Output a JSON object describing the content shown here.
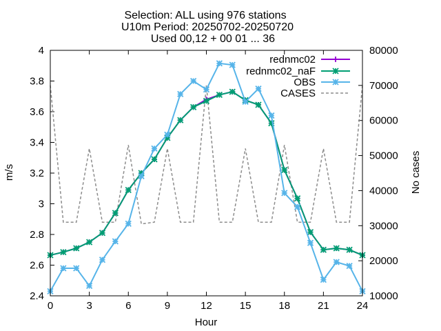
{
  "chart_data": {
    "type": "line",
    "title_lines": [
      "Selection: ALL using   976 stations",
      "U10m   Period: 20250702-20250720",
      "Used 00,12 + 00 01 ... 36"
    ],
    "xlabel": "Hour",
    "ylabel": "m/s",
    "y2label": "No cases",
    "xlim": [
      0,
      24
    ],
    "ylim": [
      2.4,
      4.0
    ],
    "y2lim": [
      10000,
      80000
    ],
    "xticks": [
      "0",
      "3",
      "6",
      "9",
      "12",
      "15",
      "18",
      "21",
      "24"
    ],
    "yticks": [
      "2.4",
      "2.6",
      "2.8",
      "3",
      "3.2",
      "3.4",
      "3.6",
      "3.8",
      "4"
    ],
    "y2ticks": [
      "10000",
      "20000",
      "30000",
      "40000",
      "50000",
      "60000",
      "70000",
      "80000"
    ],
    "legend_position": "top-right",
    "x": [
      0,
      1,
      2,
      3,
      4,
      5,
      6,
      7,
      8,
      9,
      10,
      11,
      12,
      13,
      14,
      15,
      16,
      17,
      18,
      19,
      20,
      21,
      22,
      23,
      24
    ],
    "series": [
      {
        "name": "rednmc02",
        "color": "#9400d3",
        "marker": "plus",
        "axis": "y",
        "values": [
          2.665,
          2.685,
          2.71,
          2.75,
          2.81,
          2.94,
          3.09,
          3.2,
          3.29,
          3.43,
          3.545,
          3.63,
          3.68,
          3.71,
          3.73,
          3.675,
          3.645,
          3.525,
          3.22,
          3.035,
          2.815,
          2.7,
          2.71,
          2.7,
          2.665
        ]
      },
      {
        "name": "rednmc02_naF",
        "color": "#009e73",
        "marker": "x",
        "axis": "y",
        "values": [
          2.665,
          2.685,
          2.71,
          2.75,
          2.81,
          2.94,
          3.09,
          3.2,
          3.29,
          3.43,
          3.545,
          3.63,
          3.67,
          3.71,
          3.73,
          3.675,
          3.645,
          3.525,
          3.22,
          3.035,
          2.815,
          2.7,
          2.71,
          2.7,
          2.665
        ]
      },
      {
        "name": "OBS",
        "color": "#56b4e9",
        "marker": "star",
        "axis": "y",
        "values": [
          2.43,
          2.58,
          2.58,
          2.465,
          2.635,
          2.755,
          2.87,
          3.18,
          3.36,
          3.45,
          3.715,
          3.8,
          3.745,
          3.915,
          3.905,
          3.665,
          3.75,
          3.575,
          3.07,
          2.98,
          2.745,
          2.505,
          2.62,
          2.595,
          2.43
        ]
      },
      {
        "name": "CASES",
        "color": "#8c8c8c",
        "marker": "none",
        "dashed": true,
        "axis": "y2",
        "values": [
          70000,
          31000,
          31000,
          52000,
          31000,
          31000,
          53000,
          30500,
          31000,
          52000,
          31000,
          31000,
          70000,
          31000,
          31000,
          52000,
          31000,
          31000,
          53000,
          31000,
          31000,
          52000,
          31000,
          31000,
          70000
        ]
      }
    ]
  }
}
